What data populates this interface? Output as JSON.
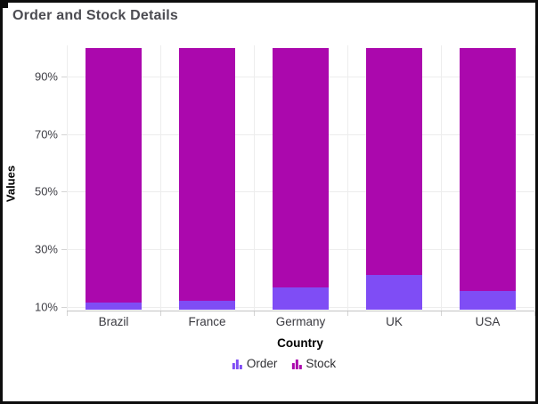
{
  "window": {
    "background": "#ffffff",
    "border_color": "#0d0d0d"
  },
  "chart_data": {
    "type": "bar",
    "subtype": "stacked-column-100",
    "title": "Order and Stock Details",
    "xlabel": "Country",
    "ylabel": "Values",
    "categories": [
      "Brazil",
      "France",
      "Germany",
      "UK",
      "USA"
    ],
    "series": [
      {
        "name": "Order",
        "color": "#7f4df5",
        "values_percent": [
          11.5,
          12.2,
          16.7,
          21.1,
          15.6
        ]
      },
      {
        "name": "Stock",
        "color": "#ab08ad",
        "values_percent": [
          88.5,
          87.8,
          83.3,
          78.9,
          84.4
        ]
      }
    ],
    "stack_total_percent": 100,
    "y_ticks": [
      {
        "value": 10,
        "label": "10%"
      },
      {
        "value": 30,
        "label": "30%"
      },
      {
        "value": 50,
        "label": "50%"
      },
      {
        "value": 70,
        "label": "70%"
      },
      {
        "value": 90,
        "label": "90%"
      }
    ],
    "ylim_visible": [
      8.8,
      100.9
    ],
    "grid": "on",
    "legend_position": "bottom",
    "legend": [
      {
        "label": "Order",
        "color": "#7f4df5"
      },
      {
        "label": "Stock",
        "color": "#ab08ad"
      }
    ]
  },
  "colors": {
    "title_text": "#4c4c52",
    "axis_title_text": "#000000",
    "tick_label_text": "#3f3f46",
    "gridline": "#ededed",
    "axis_line": "#c3c3c3"
  }
}
